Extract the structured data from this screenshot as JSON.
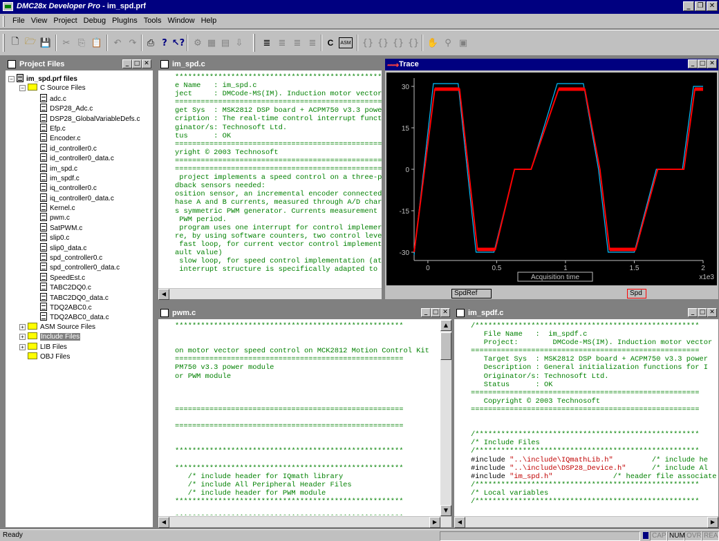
{
  "app": {
    "title_name": "DMC28x Developer Pro",
    "title_file": " - im_spd.prf"
  },
  "menu": [
    "File",
    "View",
    "Project",
    "Debug",
    "PlugIns",
    "Tools",
    "Window",
    "Help"
  ],
  "toolbar_text": {
    "c_label": "C",
    "asm_label": "ASM"
  },
  "project_panel": {
    "title": "Project Files",
    "root": "im_spd.prf files",
    "c_folder": "C Source Files",
    "c_files": [
      "adc.c",
      "DSP28_Adc.c",
      "DSP28_GlobalVariableDefs.c",
      "Efp.c",
      "Encoder.c",
      "id_controller0.c",
      "id_controller0_data.c",
      "im_spd.c",
      "im_spdf.c",
      "iq_controller0.c",
      "iq_controller0_data.c",
      "Kernel.c",
      "pwm.c",
      "SatPWM.c",
      "slip0.c",
      "slip0_data.c",
      "spd_controller0.c",
      "spd_controller0_data.c",
      "SpeedEst.c",
      "TABC2DQ0.c",
      "TABC2DQ0_data.c",
      "TDQ2ABC0.c",
      "TDQ2ABC0_data.c"
    ],
    "other_folders": [
      "ASM Source Files",
      "Include Files",
      "LIB Files",
      "OBJ Files"
    ]
  },
  "editor1": {
    "title": "im_spd.c",
    "lines": [
      "*****************************************************",
      "e Name   : im_spd.c",
      "ject     : DMCode-MS(IM). Induction motor vector",
      "=====================================================",
      "get Sys  : MSK2812 DSP board + ACPM750 v3.3 powe",
      "cription : The real-time control interrupt funct",
      "ginator/s: Technosoft Ltd.",
      "tus      : OK",
      "=====================================================",
      "yright © 2003 Technosoft",
      "=====================================================",
      "=====================================================",
      " project implements a speed control on a three-p",
      "dback sensors needed:",
      "osition sensor, an incremental encoder connected",
      "hase A and B currents, measured through A/D char",
      "s symmetric PWM generator. Currents measurement",
      " PWM period.",
      " program uses one interrupt for control implemer",
      "re, by using software counters, two control leve",
      " fast loop, for current vector control implement",
      "ault value)",
      " slow loop, for speed control implementation (at",
      " interrupt structure is specifically adapted to"
    ]
  },
  "trace": {
    "title": "Trace",
    "acq_label": "Acquisition time",
    "xscale": "x1e3",
    "legend": [
      "SpdRef",
      "Spd"
    ]
  },
  "chart_data": {
    "type": "line",
    "xlabel": "Acquisition time",
    "x_multiplier": "x1e3",
    "xlim": [
      -0.1,
      2.0
    ],
    "ylim": [
      -33,
      33
    ],
    "xticks": [
      0,
      0.5,
      1,
      1.5,
      2
    ],
    "yticks": [
      -30,
      -15,
      0,
      15,
      30
    ],
    "grid": false,
    "series": [
      {
        "name": "SpdRef",
        "color": "#00c0ff",
        "x": [
          -0.1,
          0.04,
          0.22,
          0.35,
          0.48,
          0.63,
          0.75,
          0.94,
          1.13,
          1.24,
          1.31,
          1.5,
          1.66,
          1.85,
          1.93,
          2.0
        ],
        "y": [
          -31,
          31,
          31,
          -30,
          -30,
          0,
          0,
          31,
          31,
          0,
          -30,
          -30,
          0,
          0,
          30,
          30
        ]
      },
      {
        "name": "Spd",
        "color": "#ff0000",
        "x": [
          -0.1,
          0.05,
          0.23,
          0.36,
          0.49,
          0.63,
          0.75,
          0.95,
          1.14,
          1.25,
          1.32,
          1.51,
          1.67,
          1.86,
          1.94,
          2.0
        ],
        "y": [
          -30,
          29,
          29,
          -29,
          -29,
          0,
          0,
          29,
          29,
          0,
          -29,
          -29,
          0,
          0,
          29,
          29
        ]
      }
    ]
  },
  "editor2": {
    "title": "pwm.c",
    "lines": [
      "*****************************************************",
      "",
      "",
      "on motor vector speed control on MCK2812 Motion Control Kit",
      "=====================================================",
      "PM750 v3.3 power module",
      "or PWM module",
      "",
      "",
      "",
      "=====================================================",
      "",
      "=====================================================",
      "",
      "",
      "*****************************************************",
      "",
      "*****************************************************",
      "   /* include header for IQmath library",
      "   /* include All Peripheral Header Files",
      "   /* include header for PWM module",
      "*****************************************************",
      "",
      "*****************************************************"
    ]
  },
  "editor3": {
    "title": "im_spdf.c",
    "lines": [
      "/****************************************************",
      "   File Name   :  im_spdf.c",
      "   Project:        DMCode-MS(IM). Induction motor vector",
      "=====================================================",
      "   Target Sys  : MSK2812 DSP board + ACPM750 v3.3 power",
      "   Description : General initialization functions for I",
      "   Originator/s: Technosoft Ltd.",
      "   Status      : OK",
      "=====================================================",
      "   Copyright © 2003 Technosoft",
      "=====================================================",
      "",
      "",
      "/****************************************************",
      "/* Include Files",
      "/****************************************************",
      "#include \"..\\include\\IQmathLib.h\"         /* include he",
      "#include \"..\\include\\DSP28_Device.h\"      /* include Al",
      "#include \"im_spd.h\"              /* header file associate",
      "/****************************************************",
      "/* Local variables",
      "/****************************************************"
    ]
  },
  "status": {
    "text": "Ready",
    "indicators": [
      "CAP",
      "NUM",
      "OVR",
      "REA"
    ]
  }
}
